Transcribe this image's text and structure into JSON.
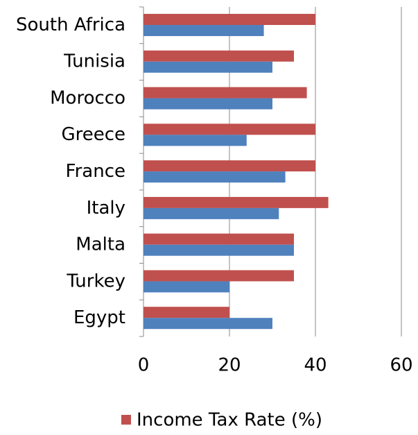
{
  "chart_data": {
    "type": "bar",
    "orientation": "horizontal",
    "categories": [
      "South Africa",
      "Tunisia",
      "Morocco",
      "Greece",
      "France",
      "Italy",
      "Malta",
      "Turkey",
      "Egypt"
    ],
    "series": [
      {
        "name": "Income Tax Rate (%)",
        "color": "#c0504d",
        "values": [
          40,
          35,
          38,
          40,
          40,
          43,
          35,
          35,
          20
        ]
      },
      {
        "color": "#4f81bd",
        "values": [
          28,
          30,
          30,
          24,
          33,
          31.5,
          35,
          20,
          30
        ]
      }
    ],
    "xlim": [
      0,
      60
    ],
    "xticks": [
      0,
      20,
      40,
      60
    ],
    "grid": true,
    "legend": "bottom"
  }
}
